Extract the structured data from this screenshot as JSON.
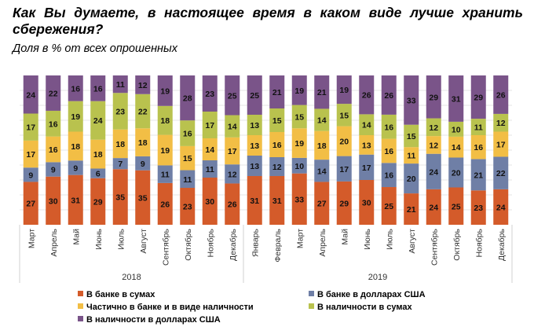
{
  "header": {
    "title": "Как Вы думаете, в настоящее время в каком виде лучше хранить сбережения?",
    "subtitle": "Доля в % от всех опрошенных"
  },
  "chart_data": {
    "type": "bar",
    "stacked": true,
    "percent_stacked": true,
    "title": "Как Вы думаете, в настоящее время в каком виде лучше хранить сбережения?",
    "subtitle": "Доля в % от всех опрошенных",
    "xlabel": "",
    "ylabel": "",
    "ylim": [
      0,
      100
    ],
    "grid": true,
    "legend_position": "bottom",
    "categories": [
      "Март",
      "Апрель",
      "Май",
      "Июнь",
      "Июль",
      "Август",
      "Сентябрь",
      "Октябрь",
      "Ноябрь",
      "Декабрь",
      "Январь",
      "Февраль",
      "Март",
      "Апрель",
      "Май",
      "Июнь",
      "Июль",
      "Август",
      "Сентябрь",
      "Октябрь",
      "Ноябрь",
      "Декабрь"
    ],
    "groups": [
      {
        "label": "2018",
        "start": 0,
        "count": 10
      },
      {
        "label": "2019",
        "start": 10,
        "count": 12
      }
    ],
    "series": [
      {
        "name": "В банке в сумах",
        "color": "#D45B2A",
        "values": [
          27,
          30,
          31,
          29,
          35,
          35,
          26,
          23,
          30,
          26,
          31,
          31,
          33,
          27,
          29,
          30,
          25,
          21,
          24,
          25,
          23,
          24
        ]
      },
      {
        "name": "В банке в долларах США",
        "color": "#6F7FA6",
        "values": [
          9,
          9,
          9,
          6,
          7,
          9,
          11,
          11,
          11,
          12,
          13,
          12,
          10,
          14,
          17,
          17,
          16,
          20,
          24,
          20,
          21,
          22
        ]
      },
      {
        "name": "Частично в банке и в виде наличности",
        "color": "#F2BE45",
        "values": [
          17,
          16,
          18,
          18,
          18,
          18,
          19,
          15,
          14,
          17,
          13,
          16,
          19,
          18,
          20,
          13,
          16,
          11,
          12,
          14,
          16,
          17
        ]
      },
      {
        "name": "В наличности в сумах",
        "color": "#B9C24E",
        "values": [
          17,
          16,
          19,
          24,
          23,
          22,
          18,
          16,
          17,
          14,
          13,
          15,
          15,
          14,
          15,
          14,
          16,
          15,
          12,
          10,
          11,
          12
        ]
      },
      {
        "name": "В наличности в долларах США",
        "color": "#7A5489",
        "values": [
          24,
          22,
          16,
          16,
          11,
          12,
          19,
          28,
          23,
          25,
          25,
          21,
          19,
          21,
          19,
          26,
          26,
          33,
          29,
          31,
          29,
          26
        ]
      }
    ]
  },
  "legend": {
    "items": [
      {
        "label": "В банке в сумах",
        "color": "#D45B2A"
      },
      {
        "label": "В банке в долларах США",
        "color": "#6F7FA6"
      },
      {
        "label": "Частично в банке и в виде наличности",
        "color": "#F2BE45"
      },
      {
        "label": "В наличности в сумах",
        "color": "#B9C24E"
      },
      {
        "label": "В наличности в долларах США",
        "color": "#7A5489"
      }
    ]
  }
}
